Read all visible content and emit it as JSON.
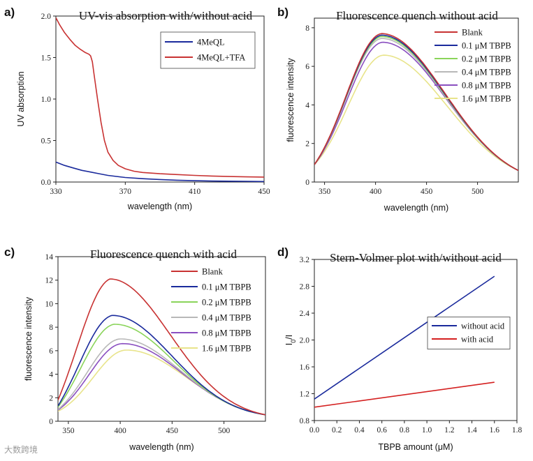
{
  "watermark": "大数跨境",
  "colors": {
    "blank": "#c83232",
    "c01": "#1a2a9c",
    "c02": "#8ad45a",
    "c04": "#b8b8b8",
    "c08": "#8a4fc0",
    "c16": "#e8e48a",
    "without_acid": "#1a2a9c",
    "with_acid": "#d42020"
  },
  "chart_data": [
    {
      "panel": "a)",
      "type": "line",
      "title": "UV-vis absorption with/without acid",
      "xlabel": "wavelength (nm)",
      "ylabel": "UV absorption",
      "xlim": [
        330,
        450
      ],
      "ylim": [
        0,
        2.0
      ],
      "xticks": [
        330,
        370,
        410,
        450
      ],
      "xtick_labels": [
        "330",
        "370",
        "410",
        "450"
      ],
      "yticks": [
        0.0,
        0.5,
        1.0,
        1.5,
        2.0
      ],
      "ytick_labels": [
        "0.0",
        "0.5",
        "1.0",
        "1.5",
        "2.0"
      ],
      "legend_position": "top-right",
      "legend_box": true,
      "series": [
        {
          "name": "4MeQL",
          "color_key": "c01",
          "x": [
            330,
            335,
            340,
            345,
            350,
            355,
            360,
            370,
            380,
            390,
            400,
            410,
            420,
            430,
            440,
            450
          ],
          "y": [
            0.24,
            0.2,
            0.17,
            0.14,
            0.12,
            0.1,
            0.08,
            0.055,
            0.04,
            0.03,
            0.022,
            0.016,
            0.012,
            0.01,
            0.008,
            0.006
          ]
        },
        {
          "name": "4MeQL+TFA",
          "color_key": "blank",
          "x": [
            330,
            332,
            335,
            338,
            341,
            344,
            347,
            349,
            350,
            351,
            352,
            354,
            356,
            358,
            360,
            363,
            366,
            370,
            375,
            380,
            390,
            400,
            410,
            420,
            430,
            440,
            450
          ],
          "y": [
            1.98,
            1.9,
            1.8,
            1.72,
            1.65,
            1.6,
            1.56,
            1.54,
            1.52,
            1.45,
            1.3,
            1.0,
            0.72,
            0.5,
            0.36,
            0.26,
            0.2,
            0.16,
            0.13,
            0.115,
            0.1,
            0.09,
            0.08,
            0.072,
            0.066,
            0.062,
            0.06
          ]
        }
      ]
    },
    {
      "panel": "b)",
      "type": "line",
      "title": "Fluorescence quench without acid",
      "xlabel": "wavelength (nm)",
      "ylabel": "fluorescence intensity",
      "xlim": [
        340,
        540
      ],
      "ylim": [
        0,
        8.5
      ],
      "xticks": [
        350,
        400,
        450,
        500
      ],
      "xtick_labels": [
        "350",
        "400",
        "450",
        "500"
      ],
      "yticks": [
        0,
        2,
        4,
        6,
        8
      ],
      "ytick_labels": [
        "0",
        "2",
        "4",
        "6",
        "8"
      ],
      "legend_position": "top-right",
      "legend_box": false,
      "curve": {
        "shape": "skew-gauss",
        "baseline_left": 0.9,
        "width_left": 35,
        "width_right": 62,
        "end_value": 0.6
      },
      "series": [
        {
          "name": "Blank",
          "color_key": "blank",
          "peak": 7.7,
          "center": 406
        },
        {
          "name": "0.1 μM TBPB",
          "color_key": "c01",
          "peak": 7.62,
          "center": 406
        },
        {
          "name": "0.2 μM TBPB",
          "color_key": "c02",
          "peak": 7.55,
          "center": 406
        },
        {
          "name": "0.4 μM TBPB",
          "color_key": "c04",
          "peak": 7.45,
          "center": 406
        },
        {
          "name": "0.8 μM TBPB",
          "color_key": "c08",
          "peak": 7.25,
          "center": 407
        },
        {
          "name": "1.6 μM TBPB",
          "color_key": "c16",
          "peak": 6.58,
          "center": 408
        }
      ]
    },
    {
      "panel": "c)",
      "type": "line",
      "title": "Fluorescence quench with acid",
      "xlabel": "wavelength (nm)",
      "ylabel": "fluorescence intensity",
      "xlim": [
        340,
        540
      ],
      "ylim": [
        0,
        14
      ],
      "xticks": [
        350,
        400,
        450,
        500
      ],
      "xtick_labels": [
        "350",
        "400",
        "450",
        "500"
      ],
      "yticks": [
        0,
        2,
        4,
        6,
        8,
        10,
        12,
        14
      ],
      "ytick_labels": [
        "0",
        "2",
        "4",
        "6",
        "8",
        "10",
        "12",
        "14"
      ],
      "legend_position": "top-right",
      "legend_box": false,
      "curve": {
        "shape": "skew-gauss",
        "width_left": 32,
        "width_right": 58,
        "end_value": 0.55
      },
      "series": [
        {
          "name": "Blank",
          "color_key": "blank",
          "peak": 12.1,
          "center": 390,
          "start": 1.8
        },
        {
          "name": "0.1 μM TBPB",
          "color_key": "c01",
          "peak": 9.0,
          "center": 392,
          "start": 1.3
        },
        {
          "name": "0.2 μM TBPB",
          "color_key": "c02",
          "peak": 8.25,
          "center": 394,
          "start": 1.2
        },
        {
          "name": "0.4 μM TBPB",
          "color_key": "c04",
          "peak": 7.0,
          "center": 400,
          "start": 1.0
        },
        {
          "name": "0.8 μM TBPB",
          "color_key": "c08",
          "peak": 6.6,
          "center": 402,
          "start": 0.95
        },
        {
          "name": "1.6 μM TBPB",
          "color_key": "c16",
          "peak": 6.05,
          "center": 406,
          "start": 0.85
        }
      ]
    },
    {
      "panel": "d)",
      "type": "line",
      "title": "Stern-Volmer plot with/without acid",
      "xlabel": "TBPB amount (μM)",
      "ylabel": "I",
      "ylabel_sub": "0",
      "ylabel_suffix": "/I",
      "xlim": [
        0,
        1.8
      ],
      "ylim": [
        0.8,
        3.2
      ],
      "xticks": [
        0,
        0.2,
        0.4,
        0.6,
        0.8,
        1.0,
        1.2,
        1.4,
        1.6,
        1.8
      ],
      "xtick_labels": [
        "0.0",
        "0.2",
        "0.4",
        "0.6",
        "0.8",
        "1.0",
        "1.2",
        "1.4",
        "1.6",
        "1.8"
      ],
      "yticks": [
        0.8,
        1.2,
        1.6,
        2.0,
        2.4,
        2.8,
        3.2
      ],
      "ytick_labels": [
        "0.8",
        "1.2",
        "1.6",
        "2.0",
        "2.4",
        "2.8",
        "3.2"
      ],
      "legend_position": "center-right",
      "legend_box": true,
      "series": [
        {
          "name": "without acid",
          "color_key": "without_acid",
          "x": [
            0,
            1.6
          ],
          "y": [
            1.12,
            2.95
          ]
        },
        {
          "name": "with acid",
          "color_key": "with_acid",
          "x": [
            0,
            1.6
          ],
          "y": [
            1.0,
            1.37
          ]
        }
      ]
    }
  ]
}
